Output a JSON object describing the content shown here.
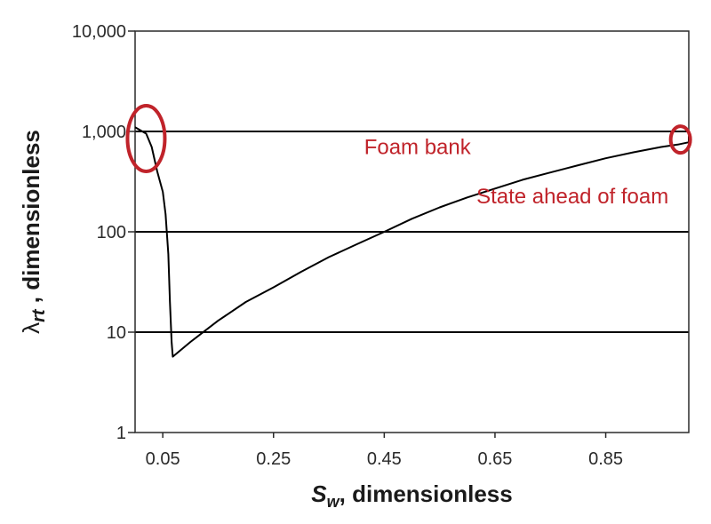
{
  "chart_data": {
    "type": "line",
    "title": "",
    "xlabel": "dimensionless",
    "xlabel_symbol": "S",
    "xlabel_subscript": "w",
    "ylabel": "dimensionless",
    "ylabel_symbol": "λ",
    "ylabel_subscript": "rt",
    "yscale": "log",
    "xlim": [
      0.0,
      1.0
    ],
    "ylim": [
      1,
      10000
    ],
    "grid": "horizontal",
    "x_ticks": [
      {
        "value": 0.05,
        "label": "0.05"
      },
      {
        "value": 0.25,
        "label": "0.25"
      },
      {
        "value": 0.45,
        "label": "0.45"
      },
      {
        "value": 0.65,
        "label": "0.65"
      },
      {
        "value": 0.85,
        "label": "0.85"
      }
    ],
    "y_ticks": [
      {
        "value": 1,
        "label": "1"
      },
      {
        "value": 10,
        "label": "10"
      },
      {
        "value": 100,
        "label": "100"
      },
      {
        "value": 1000,
        "label": "1,000"
      },
      {
        "value": 10000,
        "label": "10,000"
      }
    ],
    "series": [
      {
        "color": "#000000",
        "points": [
          [
            0.0,
            1100
          ],
          [
            0.02,
            950
          ],
          [
            0.03,
            700
          ],
          [
            0.04,
            400
          ],
          [
            0.05,
            250
          ],
          [
            0.055,
            150
          ],
          [
            0.06,
            60
          ],
          [
            0.063,
            20
          ],
          [
            0.066,
            8
          ],
          [
            0.068,
            5.7
          ],
          [
            0.1,
            8
          ],
          [
            0.15,
            13
          ],
          [
            0.2,
            20
          ],
          [
            0.25,
            28
          ],
          [
            0.3,
            40
          ],
          [
            0.35,
            56
          ],
          [
            0.4,
            75
          ],
          [
            0.45,
            100
          ],
          [
            0.5,
            135
          ],
          [
            0.55,
            175
          ],
          [
            0.6,
            220
          ],
          [
            0.65,
            270
          ],
          [
            0.7,
            330
          ],
          [
            0.75,
            390
          ],
          [
            0.8,
            460
          ],
          [
            0.85,
            540
          ],
          [
            0.9,
            620
          ],
          [
            0.95,
            700
          ],
          [
            0.98,
            740
          ],
          [
            1.0,
            780
          ],
          [
            1.0,
            900
          ]
        ]
      }
    ],
    "annotations": [
      {
        "text": "Foam bank",
        "x": 0.51,
        "y": 700,
        "color": "#c0232a"
      },
      {
        "text": "State ahead of foam",
        "x": 0.79,
        "y": 225,
        "color": "#c0232a"
      }
    ],
    "highlights": [
      {
        "shape": "ellipse",
        "x": 0.02,
        "y": 850,
        "color": "#c0232a"
      },
      {
        "shape": "ellipse",
        "x": 0.985,
        "y": 830,
        "color": "#c0232a"
      }
    ]
  }
}
